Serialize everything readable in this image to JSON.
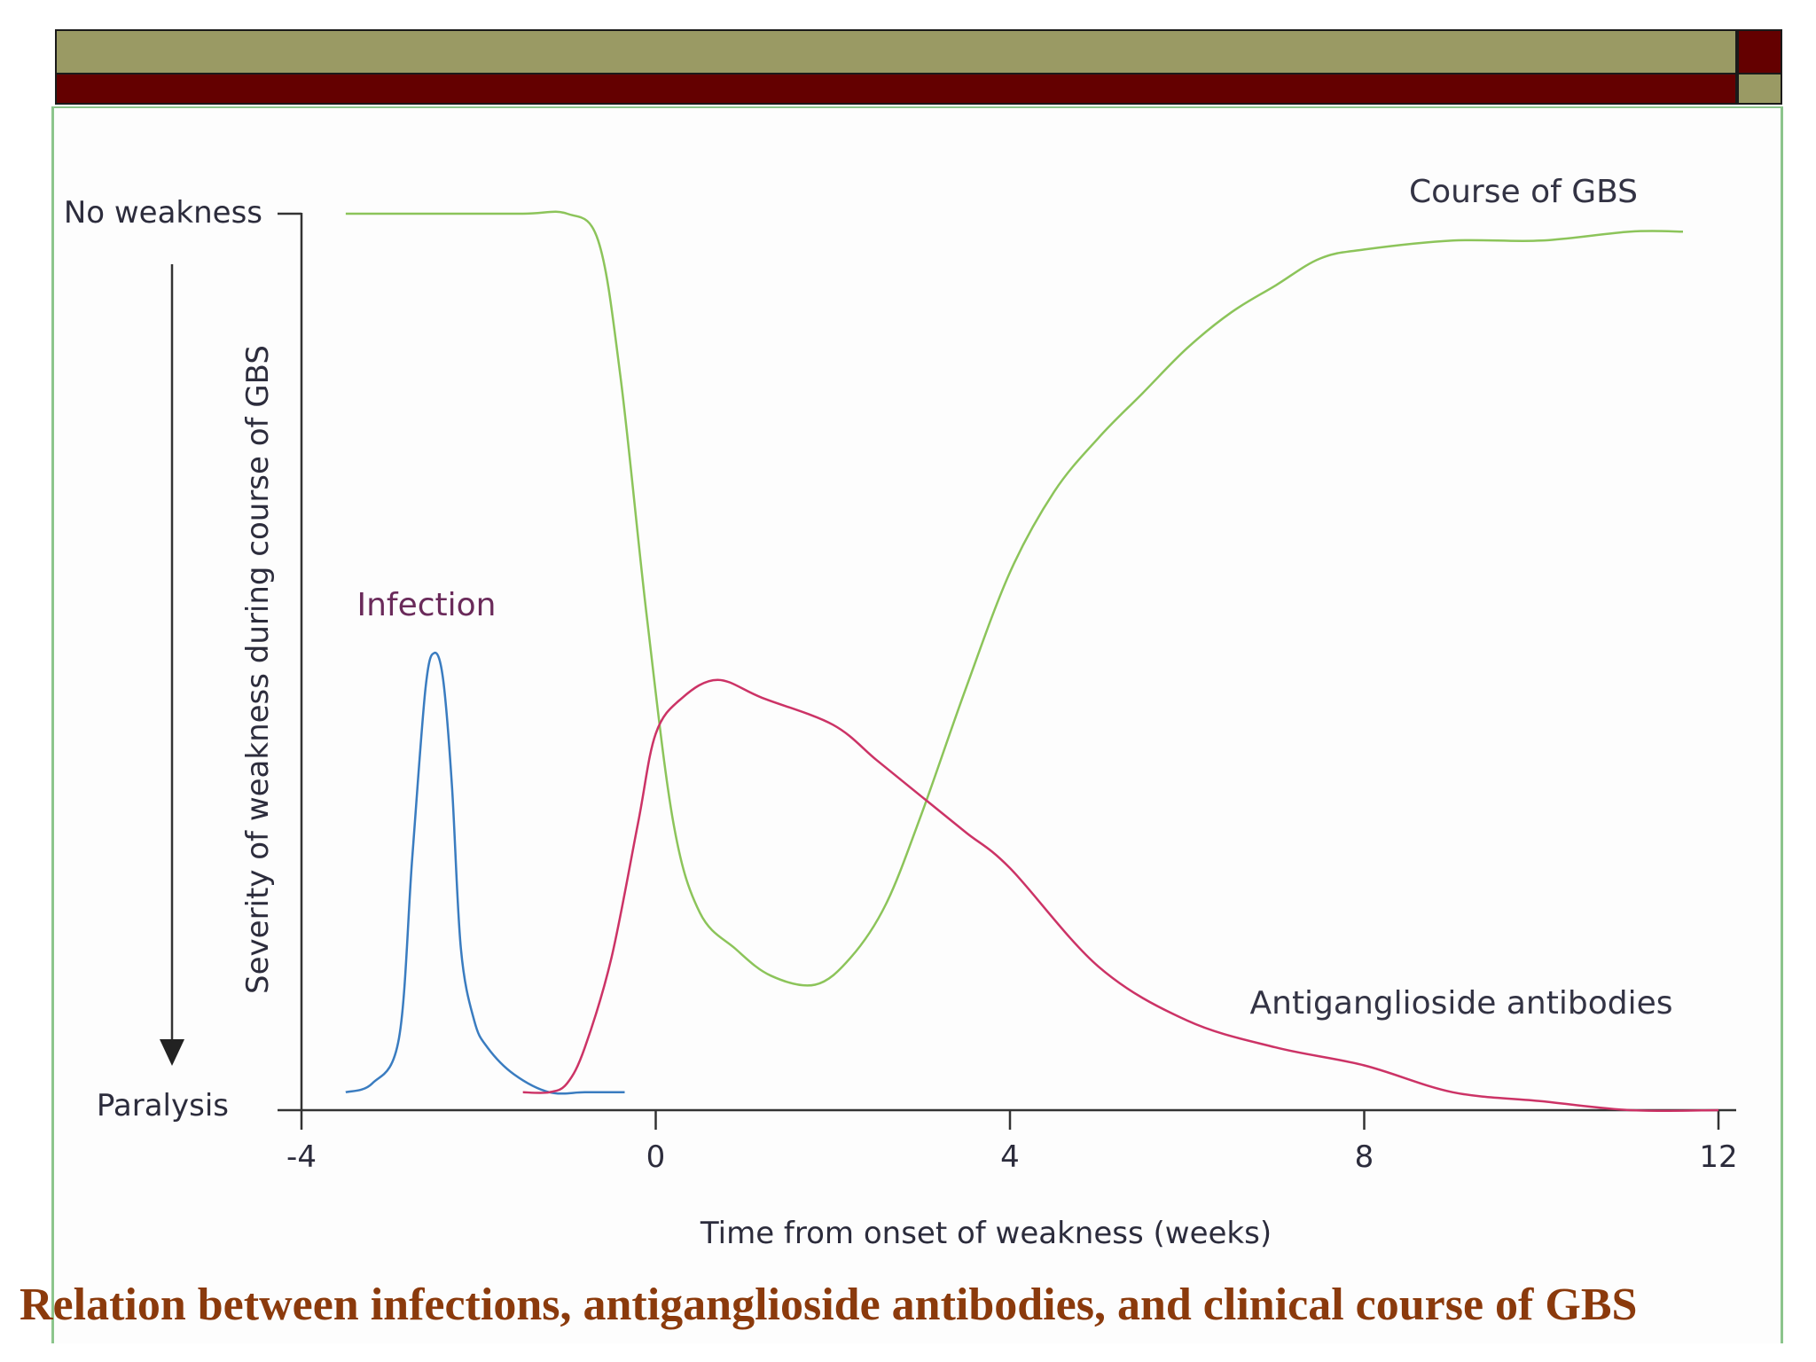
{
  "chart_data": {
    "type": "line",
    "title": "",
    "xlabel": "Time from onset of weakness (weeks)",
    "ylabel": "Severity of weakness during course of GBS",
    "xlim": [
      -4,
      12
    ],
    "ylim": [
      0,
      1
    ],
    "x_ticks": [
      -4,
      0,
      4,
      8,
      12
    ],
    "x_tick_labels": [
      "-4",
      "0",
      "4",
      "8",
      "12"
    ],
    "y_top_label": "No weakness",
    "y_bottom_label": "Paralysis",
    "grid": false,
    "series": [
      {
        "name": "Course of GBS",
        "color": "#8cc45a",
        "x": [
          -3.5,
          -2.5,
          -1.5,
          -1.0,
          -0.65,
          -0.4,
          -0.1,
          0.2,
          0.5,
          0.9,
          1.3,
          1.8,
          2.2,
          2.6,
          3.0,
          3.5,
          4.0,
          4.5,
          5.0,
          5.5,
          6.0,
          6.5,
          7.0,
          7.5,
          8.0,
          9.0,
          10.0,
          11.0,
          11.6
        ],
        "y": [
          1.0,
          1.0,
          1.0,
          1.0,
          0.97,
          0.82,
          0.55,
          0.32,
          0.22,
          0.18,
          0.15,
          0.14,
          0.17,
          0.23,
          0.33,
          0.47,
          0.6,
          0.69,
          0.75,
          0.8,
          0.85,
          0.89,
          0.92,
          0.95,
          0.96,
          0.97,
          0.97,
          0.98,
          0.98
        ]
      },
      {
        "name": "Infection",
        "color": "#3a7cc0",
        "x": [
          -3.5,
          -3.2,
          -2.9,
          -2.75,
          -2.6,
          -2.5,
          -2.4,
          -2.3,
          -2.2,
          -2.05,
          -1.9,
          -1.6,
          -1.2,
          -0.8,
          -0.35
        ],
        "y": [
          0.02,
          0.03,
          0.08,
          0.28,
          0.47,
          0.51,
          0.48,
          0.36,
          0.18,
          0.1,
          0.07,
          0.04,
          0.02,
          0.02,
          0.02
        ]
      },
      {
        "name": "Antiganglioside antibodies",
        "color": "#cc3366",
        "x": [
          -1.5,
          -1.2,
          -1.0,
          -0.8,
          -0.5,
          -0.2,
          0.0,
          0.3,
          0.7,
          1.2,
          2.0,
          2.5,
          3.0,
          3.5,
          4.0,
          5.0,
          6.0,
          7.0,
          8.0,
          9.0,
          10.0,
          11.0,
          12.0
        ],
        "y": [
          0.02,
          0.02,
          0.03,
          0.07,
          0.17,
          0.32,
          0.42,
          0.46,
          0.48,
          0.46,
          0.43,
          0.39,
          0.35,
          0.31,
          0.27,
          0.16,
          0.1,
          0.07,
          0.05,
          0.02,
          0.01,
          0.0,
          0.0
        ]
      }
    ]
  },
  "caption": "Relation between infections, antiganglioside antibodies, and clinical course of GBS"
}
